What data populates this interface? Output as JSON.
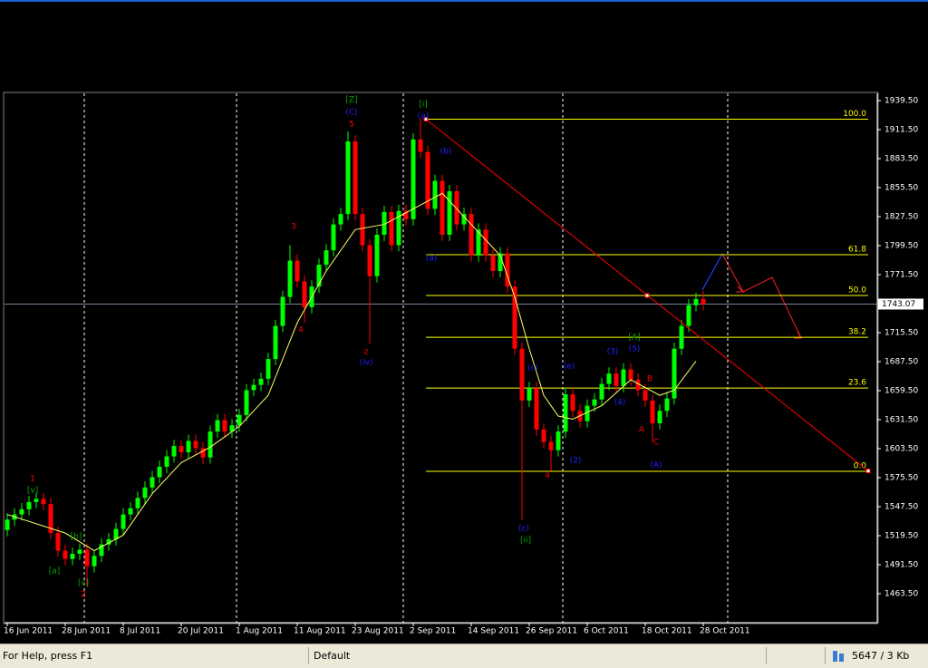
{
  "chart_data": {
    "type": "candlestick",
    "xlim": [
      -0.375,
      120
    ],
    "ylim": [
      1435.5,
      1946.5
    ],
    "xticks": [
      {
        "value": 0,
        "label": "16 Jun 2011"
      },
      {
        "value": 8,
        "label": "28 Jun 2011"
      },
      {
        "value": 16,
        "label": "8 Jul 2011"
      },
      {
        "value": 24,
        "label": "20 Jul 2011"
      },
      {
        "value": 32,
        "label": "1 Aug 2011"
      },
      {
        "value": 40,
        "label": "11 Aug 2011"
      },
      {
        "value": 48,
        "label": "23 Aug 2011"
      },
      {
        "value": 56,
        "label": "2 Sep 2011"
      },
      {
        "value": 64,
        "label": "14 Sep 2011"
      },
      {
        "value": 72,
        "label": "26 Sep 2011"
      },
      {
        "value": 80,
        "label": "6 Oct 2011"
      },
      {
        "value": 88,
        "label": "18 Oct 2011"
      },
      {
        "value": 96,
        "label": "28 Oct 2011"
      }
    ],
    "yticks": [
      {
        "value": 1939.5,
        "label": "1939.50"
      },
      {
        "value": 1911.5,
        "label": "1911.50"
      },
      {
        "value": 1883.5,
        "label": "1883.50"
      },
      {
        "value": 1855.5,
        "label": "1855.50"
      },
      {
        "value": 1827.5,
        "label": "1827.50"
      },
      {
        "value": 1799.5,
        "label": "1799.50"
      },
      {
        "value": 1771.5,
        "label": "1771.50"
      },
      {
        "value": 1715.5,
        "label": "1715.50"
      },
      {
        "value": 1687.5,
        "label": "1687.50"
      },
      {
        "value": 1659.5,
        "label": "1659.50"
      },
      {
        "value": 1631.5,
        "label": "1631.50"
      },
      {
        "value": 1603.5,
        "label": "1603.50"
      },
      {
        "value": 1575.5,
        "label": "1575.50"
      },
      {
        "value": 1547.5,
        "label": "1547.50"
      },
      {
        "value": 1519.5,
        "label": "1519.50"
      },
      {
        "value": 1491.5,
        "label": "1491.50"
      },
      {
        "value": 1463.5,
        "label": "1463.50"
      }
    ],
    "up_color": "#00ff00",
    "down_color": "#ff0000",
    "open": [
      1525,
      1535,
      1540,
      1545,
      1552,
      1555,
      1550,
      1522,
      1505,
      1497,
      1502,
      1506,
      1490,
      1500,
      1511,
      1516,
      1526,
      1540,
      1546,
      1556,
      1566,
      1576,
      1586,
      1596,
      1606,
      1600,
      1611,
      1604,
      1595,
      1620,
      1631,
      1620,
      1626,
      1636,
      1660,
      1665,
      1671,
      1690,
      1722,
      1750,
      1785,
      1765,
      1740,
      1760,
      1781,
      1795,
      1820,
      1830,
      1900,
      1830,
      1800,
      1770,
      1810,
      1832,
      1800,
      1833,
      1825,
      1902,
      1890,
      1835,
      1862,
      1810,
      1852,
      1820,
      1830,
      1790,
      1815,
      1790,
      1775,
      1792,
      1760,
      1700,
      1650,
      1662,
      1622,
      1610,
      1602,
      1620,
      1656,
      1640,
      1630,
      1645,
      1651,
      1666,
      1676,
      1664,
      1680,
      1670,
      1660,
      1650,
      1628,
      1640,
      1652,
      1700,
      1722,
      1742,
      1748
    ],
    "high": [
      1541,
      1546,
      1551,
      1558,
      1561,
      1561,
      1556,
      1528,
      1511,
      1508,
      1512,
      1512,
      1506,
      1517,
      1522,
      1532,
      1546,
      1552,
      1562,
      1572,
      1582,
      1592,
      1602,
      1612,
      1612,
      1617,
      1617,
      1610,
      1626,
      1637,
      1637,
      1632,
      1642,
      1666,
      1671,
      1677,
      1696,
      1728,
      1756,
      1800,
      1791,
      1771,
      1766,
      1787,
      1801,
      1826,
      1836,
      1910,
      1906,
      1836,
      1806,
      1816,
      1838,
      1838,
      1839,
      1839,
      1908,
      1922,
      1896,
      1868,
      1868,
      1858,
      1858,
      1836,
      1836,
      1821,
      1821,
      1796,
      1798,
      1798,
      1766,
      1706,
      1668,
      1668,
      1628,
      1616,
      1626,
      1662,
      1662,
      1646,
      1651,
      1657,
      1672,
      1682,
      1682,
      1686,
      1686,
      1676,
      1666,
      1656,
      1646,
      1658,
      1706,
      1728,
      1748,
      1754,
      1756
    ],
    "low": [
      1519,
      1529,
      1534,
      1539,
      1546,
      1544,
      1516,
      1499,
      1491,
      1491,
      1496,
      1470,
      1484,
      1494,
      1505,
      1510,
      1520,
      1534,
      1540,
      1550,
      1560,
      1570,
      1580,
      1590,
      1594,
      1594,
      1598,
      1589,
      1589,
      1614,
      1614,
      1614,
      1620,
      1630,
      1654,
      1659,
      1665,
      1684,
      1716,
      1744,
      1759,
      1725,
      1734,
      1754,
      1775,
      1789,
      1814,
      1824,
      1824,
      1794,
      1705,
      1764,
      1804,
      1794,
      1794,
      1819,
      1819,
      1884,
      1829,
      1829,
      1804,
      1804,
      1814,
      1814,
      1784,
      1784,
      1784,
      1769,
      1769,
      1754,
      1694,
      1535,
      1644,
      1616,
      1604,
      1582,
      1596,
      1614,
      1634,
      1624,
      1624,
      1639,
      1645,
      1660,
      1658,
      1658,
      1664,
      1654,
      1644,
      1610,
      1622,
      1634,
      1646,
      1694,
      1716,
      1736,
      1737
    ],
    "close": [
      1535,
      1540,
      1545,
      1552,
      1555,
      1550,
      1522,
      1505,
      1497,
      1502,
      1506,
      1490,
      1500,
      1511,
      1516,
      1526,
      1540,
      1546,
      1556,
      1566,
      1576,
      1586,
      1596,
      1606,
      1600,
      1611,
      1604,
      1595,
      1620,
      1631,
      1620,
      1626,
      1636,
      1660,
      1665,
      1671,
      1690,
      1722,
      1750,
      1785,
      1765,
      1740,
      1760,
      1781,
      1795,
      1820,
      1830,
      1900,
      1830,
      1800,
      1770,
      1810,
      1832,
      1800,
      1833,
      1825,
      1902,
      1890,
      1835,
      1862,
      1810,
      1852,
      1820,
      1830,
      1790,
      1815,
      1790,
      1775,
      1792,
      1760,
      1700,
      1650,
      1662,
      1622,
      1610,
      1602,
      1620,
      1656,
      1640,
      1630,
      1645,
      1651,
      1666,
      1676,
      1664,
      1680,
      1670,
      1660,
      1650,
      1628,
      1640,
      1652,
      1700,
      1722,
      1742,
      1748,
      1743
    ],
    "moving_average": {
      "color": "#ffff66",
      "x": [
        0,
        8,
        12,
        16,
        20,
        24,
        28,
        32,
        36,
        40,
        44,
        48,
        52,
        56,
        60,
        64,
        68,
        70,
        72,
        74,
        76,
        78,
        82,
        86,
        90,
        92,
        95
      ],
      "values": [
        1540,
        1522,
        1505,
        1520,
        1560,
        1590,
        1605,
        1625,
        1655,
        1725,
        1775,
        1815,
        1820,
        1835,
        1850,
        1820,
        1790,
        1750,
        1700,
        1655,
        1635,
        1632,
        1645,
        1670,
        1655,
        1660,
        1688
      ]
    },
    "fib_color": "#ffff00",
    "fib_levels": [
      {
        "label": "100.0",
        "value": 1921.6
      },
      {
        "label": "61.8",
        "value": 1790.7
      },
      {
        "label": "50.0",
        "value": 1751.4
      },
      {
        "label": "38.2",
        "value": 1711
      },
      {
        "label": "23.6",
        "value": 1662
      },
      {
        "label": "0.0",
        "value": 1581.6
      }
    ],
    "trendline": {
      "color": "#ff0000",
      "values": [
        1921.6,
        1582
      ]
    },
    "current_price": 1743.07,
    "wave_labels": [
      {
        "text": "[Z]",
        "color": "#00aa00"
      },
      {
        "text": "(C)",
        "color": "#2020ff"
      },
      {
        "text": "5",
        "color": "#ff0000"
      },
      {
        "text": "[i]",
        "color": "#00aa00"
      },
      {
        "text": "(a)",
        "color": "#2020ff"
      },
      {
        "text": "(b)",
        "color": "#2020ff"
      },
      {
        "text": "(a)",
        "color": "#2020ff"
      },
      {
        "text": "3",
        "color": "#ff0000"
      },
      {
        "text": "4",
        "color": "#ff0000"
      },
      {
        "text": "z",
        "color": "#ff0000"
      },
      {
        "text": "(iv)",
        "color": "#2020ff"
      },
      {
        "text": "1",
        "color": "#ff0000"
      },
      {
        "text": "[v]",
        "color": "#00aa00"
      },
      {
        "text": "[b]",
        "color": "#00aa00"
      },
      {
        "text": "[a]",
        "color": "#00aa00"
      },
      {
        "text": "[c]",
        "color": "#00aa00"
      },
      {
        "text": "2",
        "color": "#ff0000"
      },
      {
        "text": "(c)",
        "color": "#2020ff"
      },
      {
        "text": "(e)",
        "color": "#2020ff"
      },
      {
        "text": "(c)",
        "color": "#2020ff"
      },
      {
        "text": "[ii]",
        "color": "#00aa00"
      },
      {
        "text": "a",
        "color": "#ff0000"
      },
      {
        "text": "(2)",
        "color": "#2020ff"
      },
      {
        "text": "(3)",
        "color": "#2020ff"
      },
      {
        "text": "[A]",
        "color": "#00aa00"
      },
      {
        "text": "(5)",
        "color": "#2020ff"
      },
      {
        "text": "(4)",
        "color": "#2020ff"
      },
      {
        "text": "B",
        "color": "#ff0000"
      },
      {
        "text": "A",
        "color": "#ff0000"
      },
      {
        "text": "C",
        "color": "#ff0000"
      },
      {
        "text": "(A)",
        "color": "#2020ff"
      }
    ]
  },
  "status_bar": {
    "help": "For Help, press F1",
    "profile": "Default",
    "traffic": "5647 / 3 Kb"
  }
}
